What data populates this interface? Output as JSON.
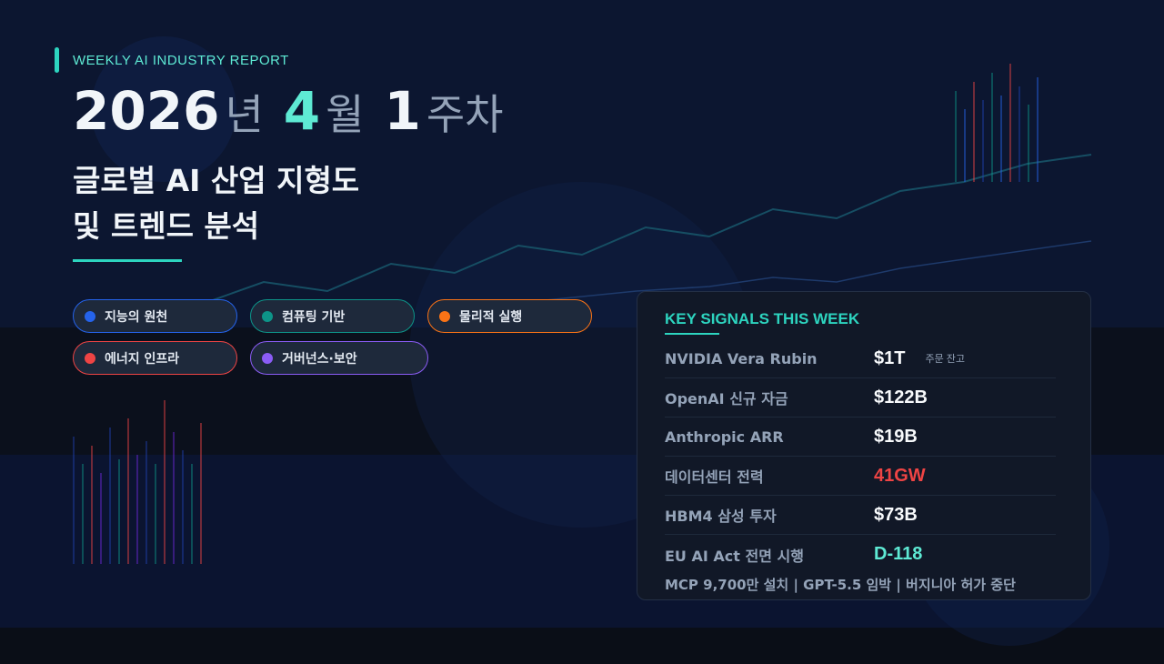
{
  "header": {
    "eyebrow": "WEEKLY AI INDUSTRY REPORT",
    "year": "2026",
    "year_unit": "년",
    "month": "4",
    "month_unit": "월",
    "week": "1",
    "week_unit": "주차",
    "title_line1": "글로벌 AI 산업 지형도",
    "title_line2": "및 트렌드 분석"
  },
  "pillars": [
    {
      "label": "지능의 원천",
      "color": "#2563eb"
    },
    {
      "label": "컴퓨팅 기반",
      "color": "#0d9488"
    },
    {
      "label": "물리적 실행",
      "color": "#f97316"
    },
    {
      "label": "에너지 인프라",
      "color": "#ef4444"
    },
    {
      "label": "거버넌스·보안",
      "color": "#8b5cf6"
    }
  ],
  "signals": {
    "title": "KEY SIGNALS THIS WEEK",
    "rows": [
      {
        "label": "NVIDIA Vera Rubin",
        "value": "$1T",
        "note": "주문 잔고",
        "color": "#f8fafc"
      },
      {
        "label": "OpenAI 신규 자금",
        "value": "$122B",
        "color": "#f8fafc"
      },
      {
        "label": "Anthropic ARR",
        "value": "$19B",
        "color": "#f8fafc"
      },
      {
        "label": "데이터센터 전력",
        "value": "41GW",
        "color": "#ef4444"
      },
      {
        "label": "HBM4 삼성 투자",
        "value": "$73B",
        "color": "#f8fafc"
      },
      {
        "label": "EU AI Act 전면 시행",
        "value": "D-118",
        "color": "#5eead4"
      }
    ],
    "footer": "MCP 9,700만 설치 | GPT-5.5 임박 | 버지니아 허가 중단"
  }
}
